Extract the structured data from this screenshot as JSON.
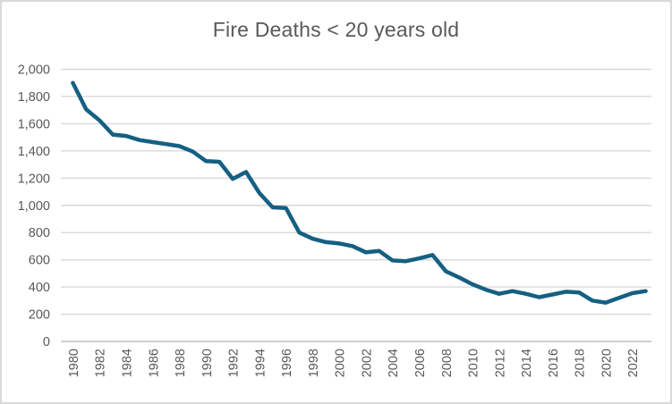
{
  "chart_data": {
    "type": "line",
    "title": "Fire Deaths < 20 years old",
    "x": [
      1980,
      1981,
      1982,
      1983,
      1984,
      1985,
      1986,
      1987,
      1988,
      1989,
      1990,
      1991,
      1992,
      1993,
      1994,
      1995,
      1996,
      1997,
      1998,
      1999,
      2000,
      2001,
      2002,
      2003,
      2004,
      2005,
      2006,
      2007,
      2008,
      2009,
      2010,
      2011,
      2012,
      2013,
      2014,
      2015,
      2016,
      2017,
      2018,
      2019,
      2020,
      2021,
      2022,
      2023
    ],
    "values": [
      1900,
      1705,
      1625,
      1520,
      1510,
      1480,
      1465,
      1450,
      1435,
      1395,
      1325,
      1320,
      1195,
      1245,
      1090,
      985,
      980,
      800,
      755,
      730,
      720,
      700,
      655,
      665,
      595,
      590,
      610,
      635,
      515,
      470,
      420,
      380,
      350,
      370,
      350,
      325,
      345,
      365,
      360,
      300,
      285,
      320,
      355,
      370
    ],
    "xlabel": "",
    "ylabel": "",
    "ylim": [
      0,
      2000
    ],
    "ytick_step": 200,
    "y_tick_labels": [
      "0",
      "200",
      "400",
      "600",
      "800",
      "1,000",
      "1,200",
      "1,400",
      "1,600",
      "1,800",
      "2,000"
    ],
    "x_tick_labels": [
      "1980",
      "1982",
      "1984",
      "1986",
      "1988",
      "1990",
      "1992",
      "1994",
      "1996",
      "1998",
      "2000",
      "2002",
      "2004",
      "2006",
      "2008",
      "2010",
      "2012",
      "2014",
      "2016",
      "2018",
      "2020",
      "2022"
    ],
    "x_tick_every": 2,
    "grid": true,
    "legend_position": "none",
    "line_color": "#156082",
    "grid_color": "#D9D9D9",
    "axis_color": "#BFBFBF",
    "text_color": "#595959",
    "border_color": "#D9D9D9",
    "background_color": "#FFFFFF"
  }
}
